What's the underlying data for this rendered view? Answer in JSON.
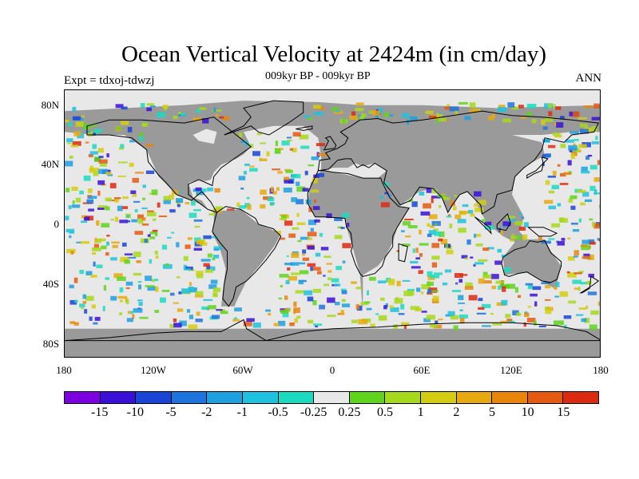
{
  "title": "Ocean Vertical Velocity at 2424m (in cm/day)",
  "subtitle": "009kyr BP - 009kyr BP",
  "left_label": "Expt = tdxoj-tdwzj",
  "right_label": "ANN",
  "lat_ticks": [
    "80N",
    "40N",
    "0",
    "40S",
    "80S"
  ],
  "lon_ticks": [
    "180",
    "120W",
    "60W",
    "0",
    "60E",
    "120E",
    "180"
  ],
  "colorbar": {
    "labels": [
      "-15",
      "-10",
      "-5",
      "-2",
      "-1",
      "-0.5",
      "-0.25",
      "0.25",
      "0.5",
      "1",
      "2",
      "5",
      "10",
      "15"
    ],
    "colors": [
      "#7d00e0",
      "#3a10d8",
      "#1a44d6",
      "#1d74dc",
      "#1ea0de",
      "#1fc2de",
      "#1cdac0",
      "#e8e8e8",
      "#5fd41c",
      "#a6d81c",
      "#d3cc10",
      "#e6aa10",
      "#e8860c",
      "#e45a10",
      "#dc2a10"
    ]
  },
  "colors": {
    "land": "#9a9a9a",
    "ocean_neutral": "#e8e8e8"
  }
}
